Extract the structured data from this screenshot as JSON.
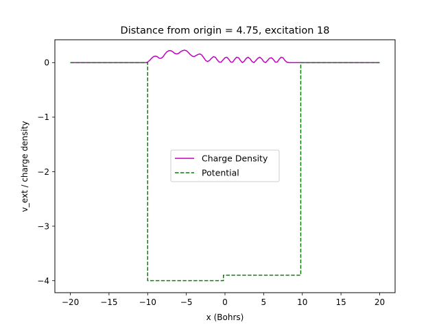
{
  "chart_data": {
    "type": "line",
    "title": "Distance from origin = 4.75, excitation 18",
    "xlabel": "x (Bohrs)",
    "ylabel": "v_ext / charge density",
    "xlim": [
      -22,
      22
    ],
    "ylim": [
      -4.22,
      0.42
    ],
    "xticks": [
      -20,
      -15,
      -10,
      -5,
      0,
      5,
      10,
      15,
      20
    ],
    "xtick_labels": [
      "−20",
      "−15",
      "−10",
      "−5",
      "0",
      "5",
      "10",
      "15",
      "20"
    ],
    "yticks": [
      0,
      -1,
      -2,
      -3,
      -4
    ],
    "ytick_labels": [
      "0",
      "−1",
      "−2",
      "−3",
      "−4"
    ],
    "grid": false,
    "legend_position": "center",
    "series": [
      {
        "name": "Charge Density",
        "color": "#bf00bf",
        "style": "solid",
        "x": [
          -20,
          -15,
          -10.2,
          -10,
          -9.75,
          -9.5,
          -9.25,
          -9,
          -8.75,
          -8.5,
          -8.25,
          -8,
          -7.75,
          -7.5,
          -7.25,
          -7,
          -6.75,
          -6.5,
          -6.25,
          -6,
          -5.75,
          -5.5,
          -5.25,
          -5,
          -4.75,
          -4.5,
          -4.25,
          -4,
          -3.75,
          -3.5,
          -3.25,
          -3,
          -2.75,
          -2.5,
          -2.25,
          -2,
          -1.75,
          -1.5,
          -1.25,
          -1,
          -0.75,
          -0.5,
          -0.25,
          0,
          0.25,
          0.5,
          0.75,
          1,
          1.25,
          1.5,
          1.75,
          2,
          2.25,
          2.5,
          2.75,
          3,
          3.25,
          3.5,
          3.75,
          4,
          4.25,
          4.5,
          4.75,
          5,
          5.25,
          5.5,
          5.75,
          6,
          6.25,
          6.5,
          6.75,
          7,
          7.25,
          7.5,
          7.75,
          8,
          8.25,
          8.5,
          8.75,
          9,
          9.25,
          9.5,
          9.75,
          10,
          10.2,
          15,
          20
        ],
        "y": [
          0,
          0,
          0,
          0.01,
          0.04,
          0.08,
          0.11,
          0.12,
          0.11,
          0.08,
          0.08,
          0.11,
          0.16,
          0.2,
          0.22,
          0.22,
          0.2,
          0.17,
          0.16,
          0.17,
          0.2,
          0.22,
          0.23,
          0.22,
          0.19,
          0.15,
          0.12,
          0.11,
          0.13,
          0.15,
          0.16,
          0.14,
          0.09,
          0.04,
          0.02,
          0.04,
          0.08,
          0.11,
          0.1,
          0.05,
          0.01,
          0.01,
          0.05,
          0.09,
          0.1,
          0.06,
          0.01,
          0.01,
          0.06,
          0.1,
          0.09,
          0.04,
          0.0,
          0.03,
          0.08,
          0.1,
          0.07,
          0.02,
          0.0,
          0.04,
          0.08,
          0.1,
          0.07,
          0.02,
          0.0,
          0.04,
          0.08,
          0.09,
          0.06,
          0.01,
          0.01,
          0.06,
          0.1,
          0.09,
          0.04,
          0.01,
          0.0,
          0.0,
          0.0,
          0.0,
          0.0,
          0.0,
          0.0,
          0.0,
          0.0,
          0.0,
          0.0
        ]
      },
      {
        "name": "Potential",
        "color": "#008000",
        "style": "dashed",
        "x": [
          -20,
          -10,
          -10,
          -0.2,
          -0.2,
          9.8,
          9.8,
          20
        ],
        "y": [
          0,
          0,
          -4,
          -4,
          -3.9,
          -3.9,
          0,
          0
        ]
      }
    ]
  }
}
